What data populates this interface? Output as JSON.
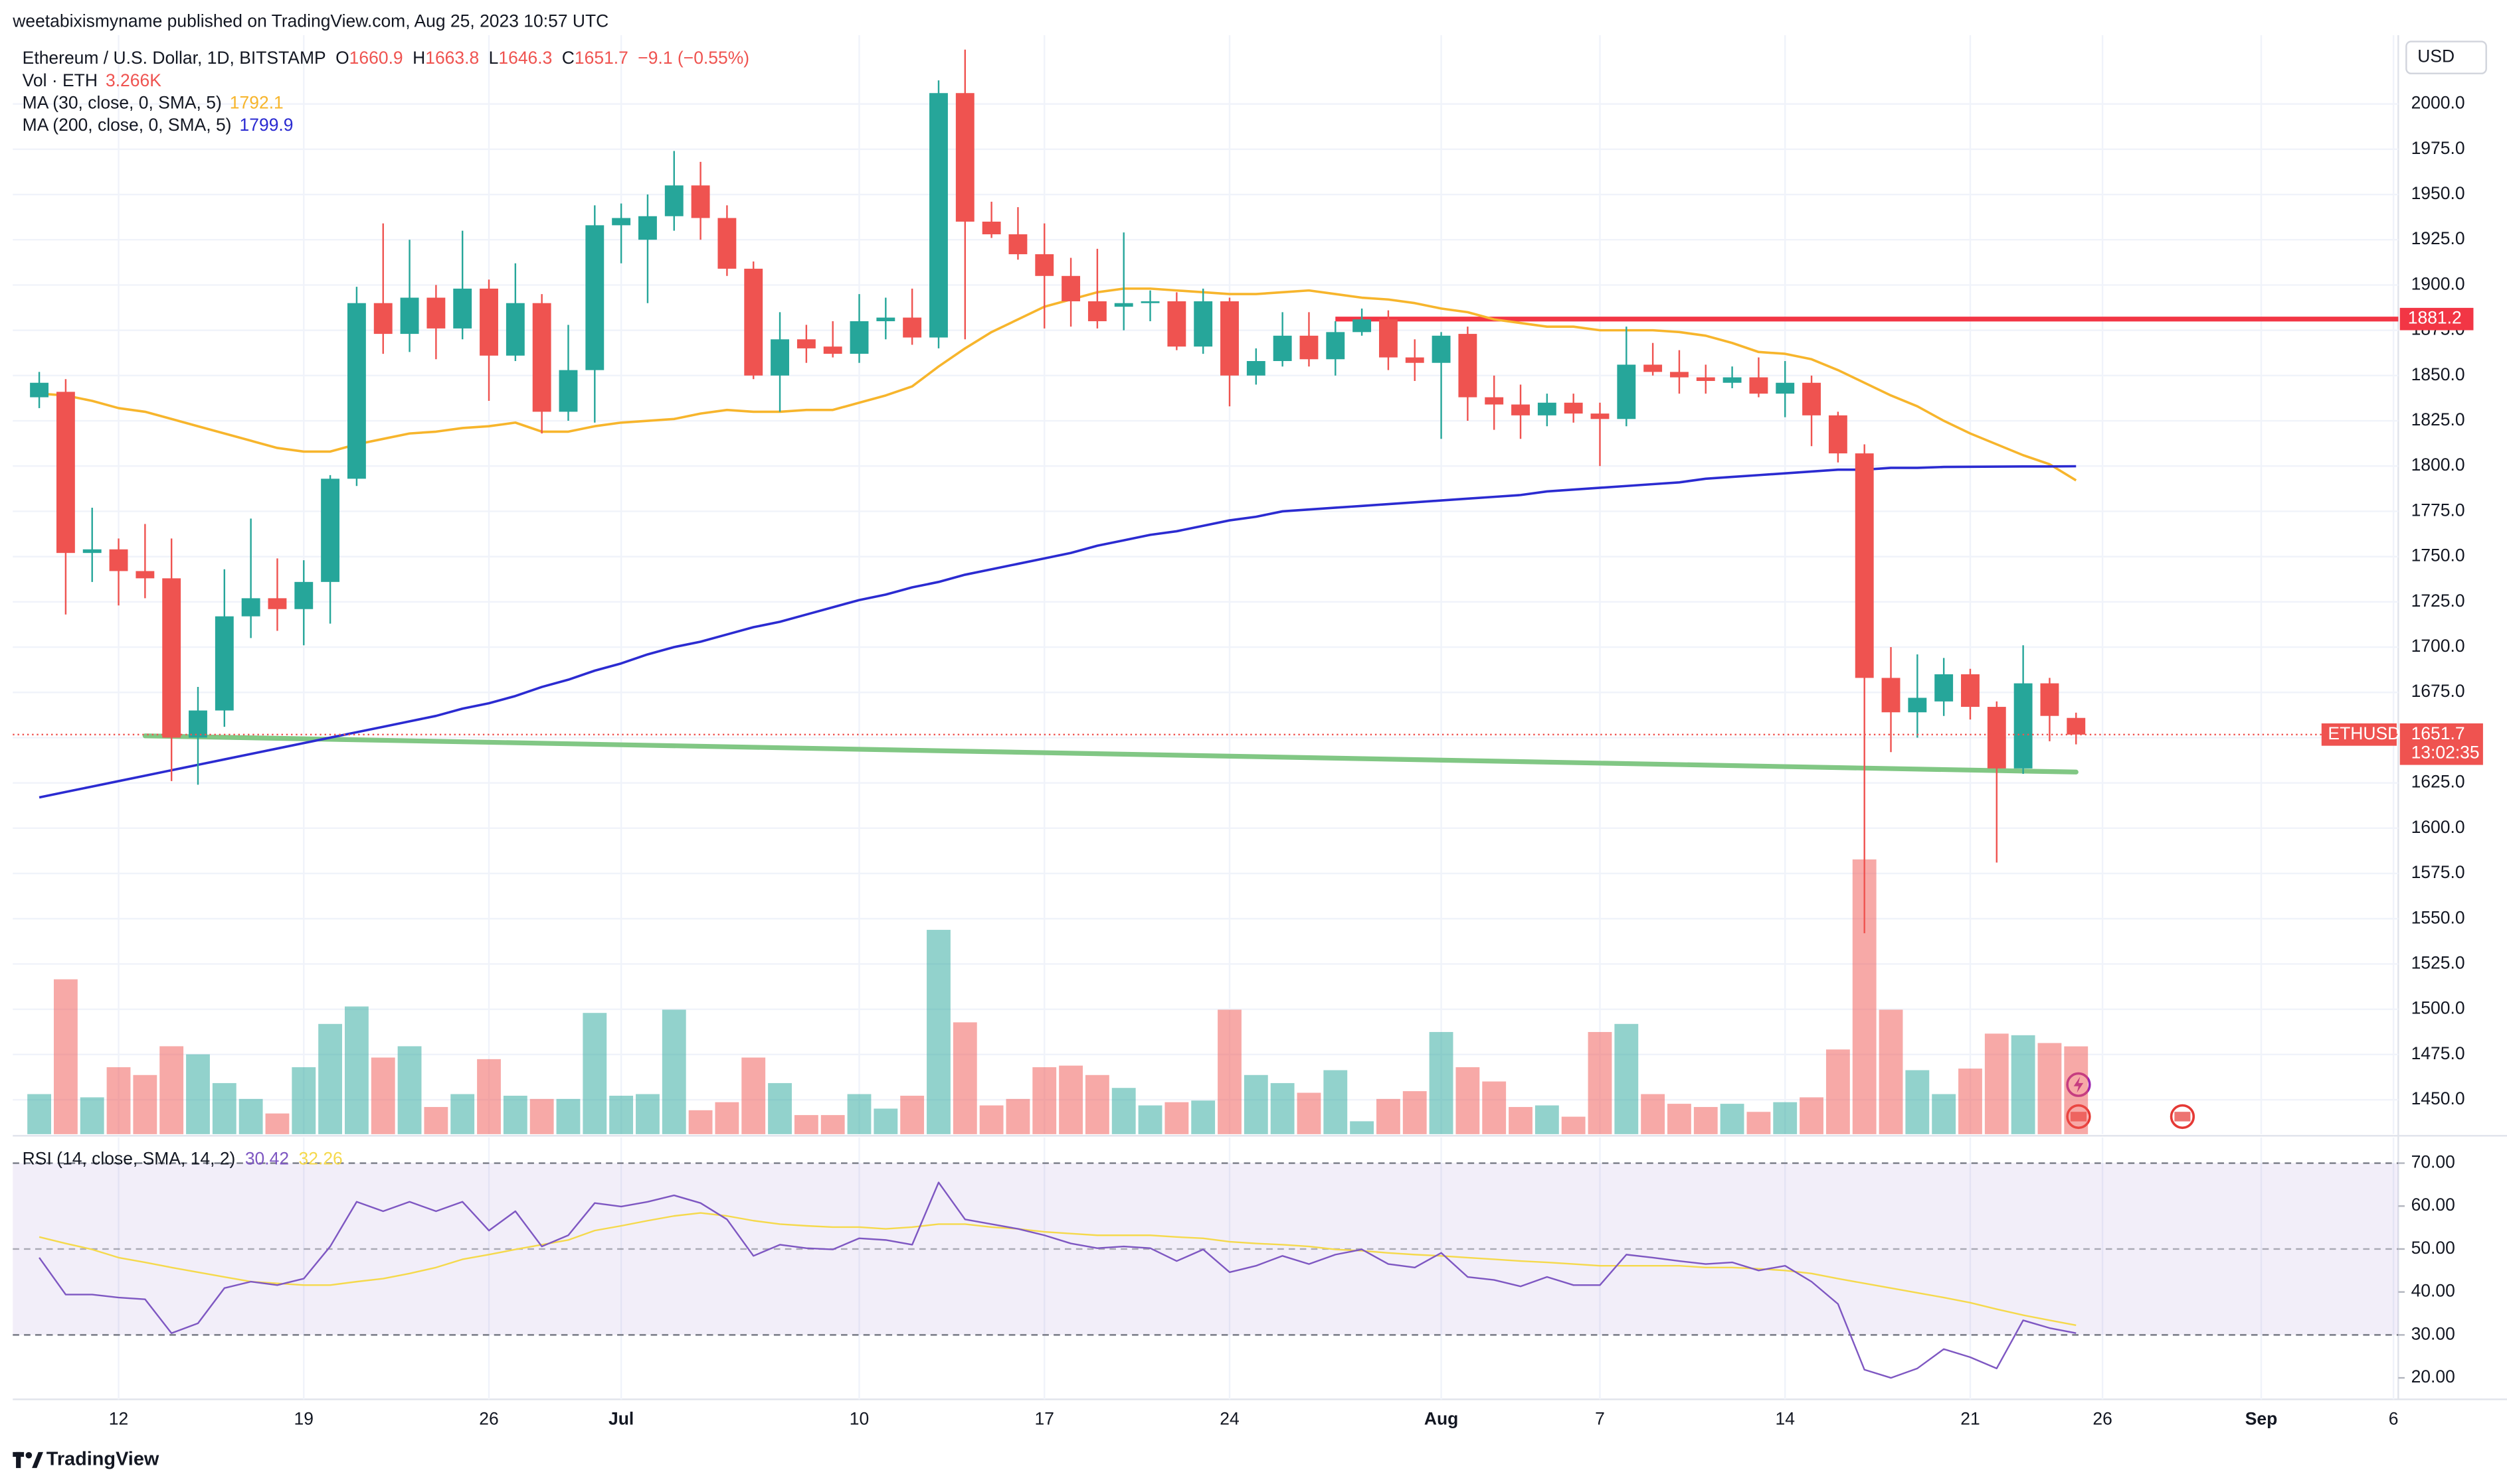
{
  "chart_data": {
    "type": "candlestick",
    "publisher": "weetabixismyname published on TradingView.com, Aug 25, 2023 10:57 UTC",
    "title": "Ethereum / U.S. Dollar, 1D, BITSTAMP",
    "ohlc_prefixes": [
      "O",
      "H",
      "L",
      "C"
    ],
    "change_label": "−9.1 (−0.55%)",
    "currency": "USD",
    "brand": "TradingView",
    "up_color": "#26a69a",
    "down_color": "#ef5350",
    "x": [
      "06-09",
      "06-10",
      "06-11",
      "06-12",
      "06-13",
      "06-14",
      "06-15",
      "06-16",
      "06-17",
      "06-18",
      "06-19",
      "06-20",
      "06-21",
      "06-22",
      "06-23",
      "06-24",
      "06-25",
      "06-26",
      "06-27",
      "06-28",
      "06-29",
      "06-30",
      "07-01",
      "07-02",
      "07-03",
      "07-04",
      "07-05",
      "07-06",
      "07-07",
      "07-08",
      "07-09",
      "07-10",
      "07-11",
      "07-12",
      "07-13",
      "07-14",
      "07-15",
      "07-16",
      "07-17",
      "07-18",
      "07-19",
      "07-20",
      "07-21",
      "07-22",
      "07-23",
      "07-24",
      "07-25",
      "07-26",
      "07-27",
      "07-28",
      "07-29",
      "07-30",
      "07-31",
      "08-01",
      "08-02",
      "08-03",
      "08-04",
      "08-05",
      "08-06",
      "08-07",
      "08-08",
      "08-09",
      "08-10",
      "08-11",
      "08-12",
      "08-13",
      "08-14",
      "08-15",
      "08-16",
      "08-17",
      "08-18",
      "08-19",
      "08-20",
      "08-21",
      "08-22",
      "08-23",
      "08-24",
      "08-25"
    ],
    "open": [
      1838,
      1841,
      1752,
      1754,
      1742,
      1738,
      1650,
      1665,
      1717,
      1727,
      1721,
      1736,
      1793,
      1890,
      1873,
      1893,
      1876,
      1898,
      1861,
      1890,
      1830,
      1853,
      1933,
      1925,
      1938,
      1955,
      1937,
      1909,
      1850,
      1870,
      1866,
      1862,
      1880,
      1882,
      1871,
      2006,
      1935,
      1928,
      1917,
      1905,
      1891,
      1888,
      1890,
      1891,
      1866,
      1891,
      1850,
      1858,
      1872,
      1859,
      1874,
      1881,
      1860,
      1857,
      1873,
      1838,
      1834,
      1828,
      1835,
      1829,
      1826,
      1856,
      1852,
      1849,
      1846,
      1849,
      1840,
      1846,
      1828,
      1807,
      1683,
      1664,
      1670,
      1685,
      1667,
      1633,
      1680,
      1660.9
    ],
    "high": [
      1852,
      1848,
      1777,
      1760,
      1768,
      1760,
      1678,
      1743,
      1771,
      1749,
      1748,
      1795,
      1899,
      1934,
      1925,
      1900,
      1930,
      1903,
      1912,
      1895,
      1878,
      1944,
      1945,
      1950,
      1974,
      1968,
      1944,
      1913,
      1885,
      1878,
      1880,
      1895,
      1893,
      1898,
      2013,
      2030,
      1946,
      1943,
      1934,
      1915,
      1920,
      1929,
      1897,
      1896,
      1898,
      1893,
      1865,
      1885,
      1885,
      1880,
      1887,
      1886,
      1870,
      1874,
      1877,
      1850,
      1845,
      1840,
      1840,
      1835,
      1877,
      1868,
      1864,
      1856,
      1855,
      1860,
      1858,
      1850,
      1830,
      1812,
      1700,
      1696,
      1694,
      1688,
      1670,
      1701,
      1683,
      1663.8
    ],
    "low": [
      1832,
      1718,
      1736,
      1723,
      1727,
      1626,
      1624,
      1656,
      1705,
      1709,
      1701,
      1713,
      1789,
      1862,
      1863,
      1859,
      1870,
      1836,
      1858,
      1818,
      1825,
      1824,
      1912,
      1890,
      1930,
      1925,
      1905,
      1848,
      1830,
      1857,
      1860,
      1857,
      1870,
      1867,
      1865,
      1870,
      1926,
      1914,
      1876,
      1877,
      1876,
      1875,
      1880,
      1864,
      1862,
      1833,
      1845,
      1855,
      1855,
      1850,
      1872,
      1853,
      1847,
      1815,
      1825,
      1820,
      1815,
      1822,
      1824,
      1800,
      1822,
      1850,
      1840,
      1840,
      1843,
      1838,
      1827,
      1811,
      1802,
      1542,
      1642,
      1650,
      1662,
      1660,
      1581,
      1630,
      1648,
      1646.3
    ],
    "close": [
      1846,
      1752,
      1754,
      1742,
      1738,
      1650,
      1665,
      1717,
      1727,
      1721,
      1736,
      1793,
      1890,
      1873,
      1893,
      1876,
      1898,
      1861,
      1890,
      1830,
      1853,
      1933,
      1937,
      1938,
      1955,
      1937,
      1909,
      1850,
      1870,
      1865,
      1862,
      1880,
      1882,
      1871,
      2006,
      1935,
      1928,
      1917,
      1905,
      1891,
      1880,
      1890,
      1891,
      1866,
      1891,
      1850,
      1858,
      1872,
      1859,
      1874,
      1881,
      1860,
      1857,
      1872,
      1838,
      1834,
      1828,
      1835,
      1829,
      1826,
      1856,
      1852,
      1849,
      1847,
      1849,
      1840,
      1846,
      1828,
      1807,
      1683,
      1664,
      1672,
      1685,
      1667,
      1633,
      1680,
      1662,
      1651.7
    ],
    "volume": {
      "name": "Vol · ETH",
      "legend_value": "3.266K",
      "values": [
        1490,
        5760,
        1370,
        2490,
        2200,
        3270,
        2970,
        1900,
        1310,
        770,
        2490,
        4100,
        4750,
        2850,
        3270,
        1010,
        1490,
        2790,
        1430,
        1310,
        1310,
        4510,
        1430,
        1490,
        4630,
        890,
        1190,
        2850,
        1900,
        710,
        710,
        1490,
        950,
        1430,
        7600,
        4160,
        1070,
        1310,
        2490,
        2550,
        2200,
        1720,
        1070,
        1190,
        1250,
        4630,
        2200,
        1900,
        1540,
        2380,
        480,
        1310,
        1600,
        3800,
        2490,
        1960,
        1010,
        1070,
        650,
        3800,
        4100,
        1490,
        1130,
        1010,
        1130,
        830,
        1190,
        1370,
        3150,
        10220,
        4630,
        2380,
        1490,
        2440,
        3740,
        3680,
        3390,
        3266
      ]
    },
    "series": [
      {
        "name": "MA (30, close, 0, SMA, 5)",
        "color": "#f7b52c",
        "values": [
          1840,
          1839,
          1836,
          1832,
          1830,
          1826,
          1822,
          1818,
          1814,
          1810,
          1808,
          1808,
          1812,
          1815,
          1818,
          1819,
          1821,
          1822,
          1824,
          1819,
          1819,
          1822,
          1824,
          1825,
          1826,
          1829,
          1831,
          1830,
          1830,
          1831,
          1831,
          1835,
          1839,
          1844,
          1855,
          1865,
          1874,
          1881,
          1888,
          1892,
          1896,
          1898,
          1898,
          1897,
          1896,
          1895,
          1895,
          1896,
          1897,
          1895,
          1893,
          1892,
          1890,
          1887,
          1885,
          1881,
          1879,
          1877,
          1877,
          1875,
          1875,
          1875,
          1874,
          1872,
          1868,
          1863,
          1862,
          1859,
          1853,
          1846,
          1839,
          1833,
          1825,
          1818,
          1812,
          1806,
          1801,
          1792.1
        ]
      },
      {
        "name": "MA (200, close, 0, SMA, 5)",
        "color": "#2b2bd1",
        "values": [
          1617,
          1620,
          1623,
          1626,
          1629,
          1632,
          1635,
          1638,
          1641,
          1644,
          1647,
          1650,
          1653,
          1656,
          1659,
          1662,
          1666,
          1669,
          1673,
          1678,
          1682,
          1687,
          1691,
          1696,
          1700,
          1703,
          1707,
          1711,
          1714,
          1718,
          1722,
          1726,
          1729,
          1733,
          1736,
          1740,
          1743,
          1746,
          1749,
          1752,
          1756,
          1759,
          1762,
          1764,
          1767,
          1770,
          1772,
          1775,
          1776,
          1777,
          1778,
          1779,
          1780,
          1781,
          1782,
          1783,
          1784,
          1786,
          1787,
          1788,
          1789,
          1790,
          1791,
          1793,
          1794,
          1795,
          1796,
          1797,
          1798,
          1798,
          1799,
          1799,
          1799.5,
          1799.6,
          1799.7,
          1799.8,
          1799.8,
          1799.9
        ]
      }
    ],
    "ylim": [
      1431,
      2038
    ],
    "yticks": [
      {
        "value": 1450,
        "label": "1450.0"
      },
      {
        "value": 1475,
        "label": "1475.0"
      },
      {
        "value": 1500,
        "label": "1500.0"
      },
      {
        "value": 1525,
        "label": "1525.0"
      },
      {
        "value": 1550,
        "label": "1550.0"
      },
      {
        "value": 1575,
        "label": "1575.0"
      },
      {
        "value": 1600,
        "label": "1600.0"
      },
      {
        "value": 1625,
        "label": "1625.0"
      },
      {
        "value": 1650,
        "label": "1650.0"
      },
      {
        "value": 1675,
        "label": "1675.0"
      },
      {
        "value": 1700,
        "label": "1700.0"
      },
      {
        "value": 1725,
        "label": "1725.0"
      },
      {
        "value": 1750,
        "label": "1750.0"
      },
      {
        "value": 1775,
        "label": "1775.0"
      },
      {
        "value": 1800,
        "label": "1800.0"
      },
      {
        "value": 1825,
        "label": "1825.0"
      },
      {
        "value": 1850,
        "label": "1850.0"
      },
      {
        "value": 1875,
        "label": "1875.0"
      },
      {
        "value": 1900,
        "label": "1900.0"
      },
      {
        "value": 1925,
        "label": "1925.0"
      },
      {
        "value": 1950,
        "label": "1950.0"
      },
      {
        "value": 1975,
        "label": "1975.0"
      },
      {
        "value": 2000,
        "label": "2000.0"
      }
    ],
    "xlim": [
      "06-08",
      "09-06"
    ],
    "xticks": [
      {
        "value": "06-12",
        "label": "12"
      },
      {
        "value": "06-19",
        "label": "19"
      },
      {
        "value": "06-26",
        "label": "26"
      },
      {
        "value": "07-01",
        "label": "Jul"
      },
      {
        "value": "07-10",
        "label": "10"
      },
      {
        "value": "07-17",
        "label": "17"
      },
      {
        "value": "07-24",
        "label": "24"
      },
      {
        "value": "08-01",
        "label": "Aug"
      },
      {
        "value": "08-07",
        "label": "7"
      },
      {
        "value": "08-14",
        "label": "14"
      },
      {
        "value": "08-21",
        "label": "21"
      },
      {
        "value": "08-26",
        "label": "26"
      },
      {
        "value": "09-01",
        "label": "Sep"
      },
      {
        "value": "09-06",
        "label": "6"
      }
    ],
    "grid": true,
    "last_price": {
      "symbol": "ETHUSD",
      "countdown": "13:02:35"
    },
    "annotations": [
      {
        "type": "hline",
        "value": 1881.2,
        "from": "07-28",
        "color": "#f23645"
      },
      {
        "type": "trendline",
        "x": [
          "06-13",
          "08-25"
        ],
        "values": [
          1651,
          1631
        ],
        "color": "#81c784"
      }
    ],
    "rsi": {
      "name": "RSI (14, close, SMA, 14, 2)",
      "color": "#7e57c2",
      "ma_color": "#f5d94c",
      "values": [
        48,
        39.4,
        39.4,
        38.7,
        38.3,
        30.4,
        32.7,
        40.9,
        42.4,
        41.6,
        43.1,
        50.6,
        61,
        58.8,
        61,
        58.8,
        61,
        54.3,
        58.8,
        50.6,
        53.2,
        60.7,
        59.9,
        61,
        62.5,
        60.7,
        56.9,
        48.4,
        51,
        50.2,
        49.9,
        52.5,
        52.1,
        51,
        65.5,
        56.9,
        55.8,
        54.7,
        53.2,
        51.3,
        50.2,
        50.6,
        50.2,
        47.2,
        49.9,
        44.6,
        46.1,
        48.4,
        46.5,
        48.7,
        49.9,
        46.5,
        45.7,
        49.1,
        43.5,
        42.8,
        41.3,
        43.5,
        41.6,
        41.6,
        48.7,
        48,
        47.2,
        46.5,
        46.9,
        45,
        46.1,
        42.4,
        37.2,
        21.9,
        20,
        22.2,
        26.7,
        24.8,
        22.2,
        33.4,
        31.6,
        30.42
      ],
      "ma_values": [
        52.8,
        51.3,
        49.9,
        48,
        46.9,
        45.7,
        44.6,
        43.5,
        42.4,
        42,
        41.6,
        41.6,
        42.4,
        43.1,
        44.3,
        45.7,
        47.6,
        48.7,
        49.9,
        51,
        52.1,
        54.3,
        55.4,
        56.6,
        57.7,
        58.4,
        57.7,
        56.6,
        55.8,
        55.4,
        55.1,
        55.1,
        54.7,
        55.1,
        55.8,
        55.8,
        55.1,
        54.7,
        54,
        53.6,
        53.2,
        53.2,
        53.2,
        52.8,
        52.5,
        51.7,
        51.3,
        51,
        50.6,
        49.9,
        49.6,
        49.1,
        48.7,
        48.4,
        48,
        47.6,
        47.2,
        46.9,
        46.5,
        46.1,
        46.1,
        46.1,
        46.1,
        45.7,
        45.7,
        45.4,
        45,
        44.3,
        43.1,
        42,
        40.9,
        39.8,
        38.7,
        37.5,
        36,
        34.6,
        33.4,
        32.26
      ],
      "ylim": [
        15,
        76
      ],
      "yticks": [
        {
          "value": 20,
          "label": "20.00"
        },
        {
          "value": 30,
          "label": "30.00"
        },
        {
          "value": 40,
          "label": "40.00"
        },
        {
          "value": 50,
          "label": "50.00"
        },
        {
          "value": 60,
          "label": "60.00"
        },
        {
          "value": 70,
          "label": "70.00"
        }
      ],
      "band": [
        30,
        70
      ],
      "midline": 50
    }
  }
}
